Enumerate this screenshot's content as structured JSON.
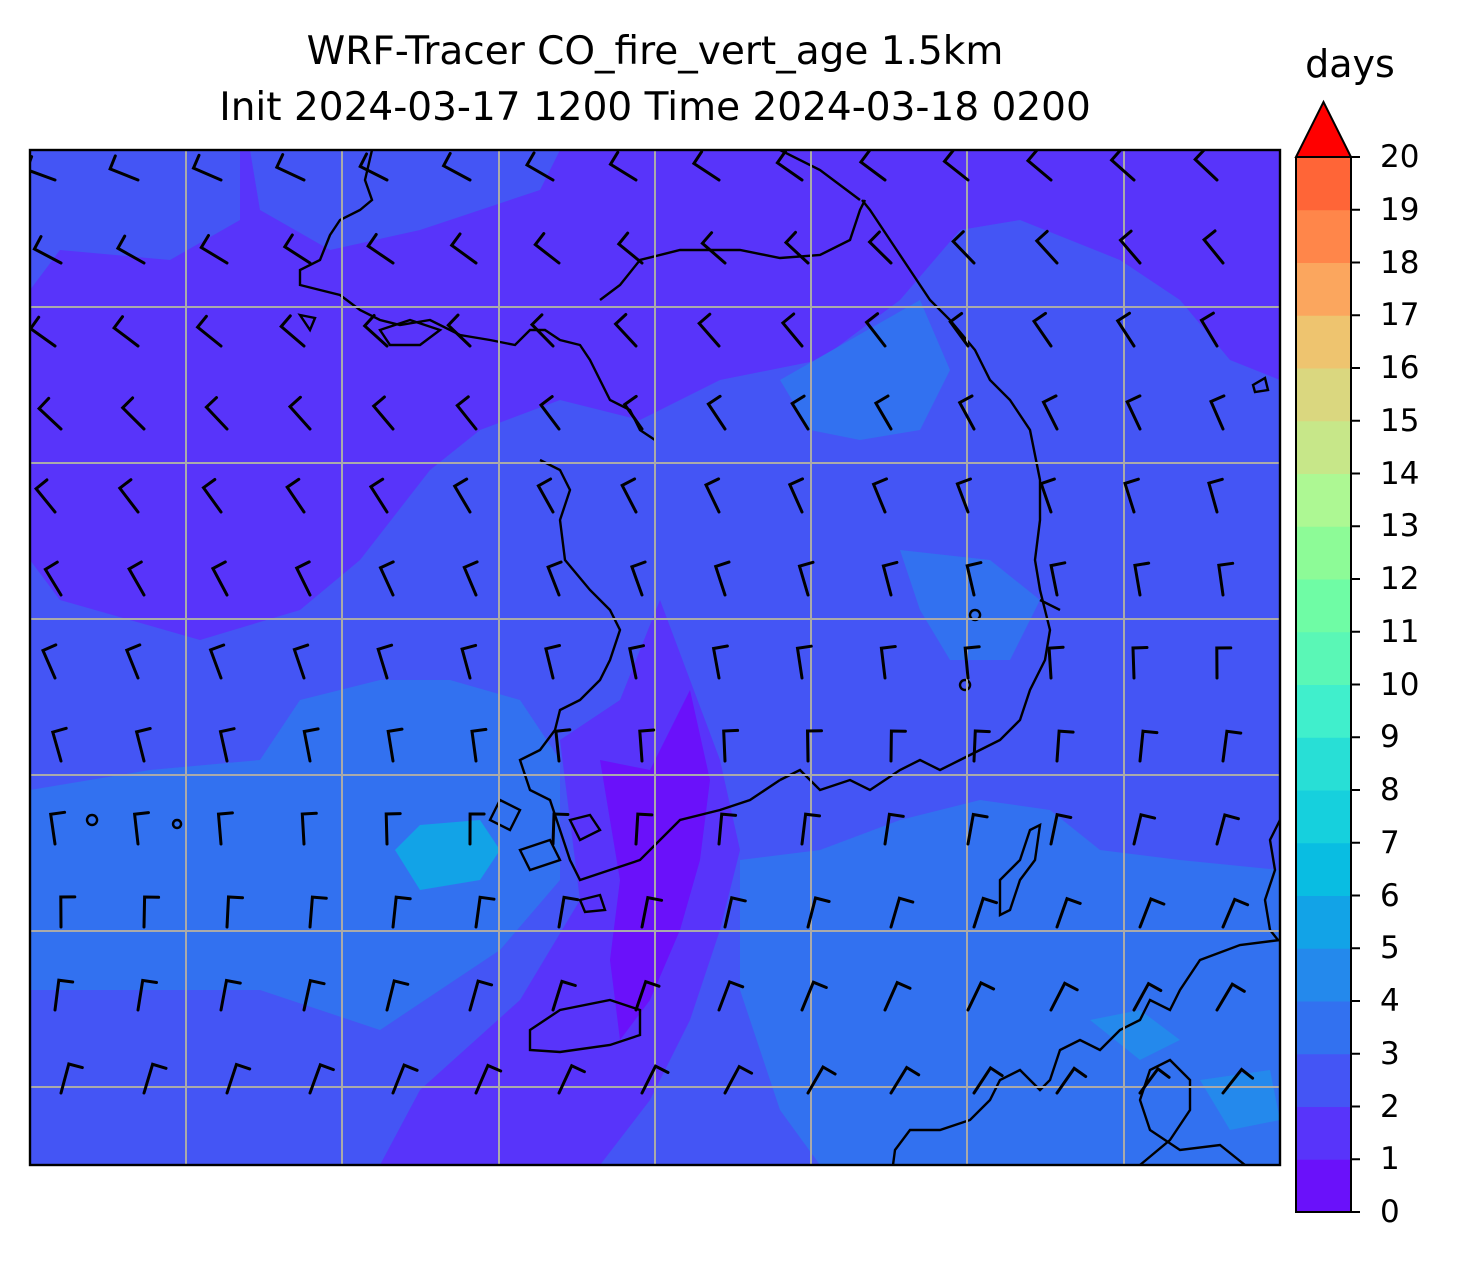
{
  "title": {
    "line1": "WRF-Tracer CO_fire_vert_age 1.5km",
    "line2": "Init 2024-03-17 1200 Time 2024-03-18 0200"
  },
  "colorbar": {
    "unit": "days",
    "min": 0,
    "max": 20,
    "extend": "max",
    "tick_labels": [
      "0",
      "1",
      "2",
      "3",
      "4",
      "5",
      "6",
      "7",
      "8",
      "9",
      "10",
      "11",
      "12",
      "13",
      "14",
      "15",
      "16",
      "17",
      "18",
      "19",
      "20"
    ],
    "colors": [
      "#6a11fa",
      "#5834fa",
      "#4455f5",
      "#3271f0",
      "#2489ec",
      "#12a3e7",
      "#09bde2",
      "#16d0dd",
      "#28dfd6",
      "#40efcc",
      "#5af7b6",
      "#6ffca5",
      "#8dfb97",
      "#adf893",
      "#c7e789",
      "#dad77f",
      "#eec46f",
      "#fba65e",
      "#ff864a",
      "#ff6537",
      "#ff3a22",
      "#ff1010"
    ],
    "extend_color": "#ff0000"
  },
  "map": {
    "field": "CO_fire_vert_age",
    "ocean_color": "#5834fa",
    "gridlines": "on",
    "overlay": "wind-barbs"
  }
}
